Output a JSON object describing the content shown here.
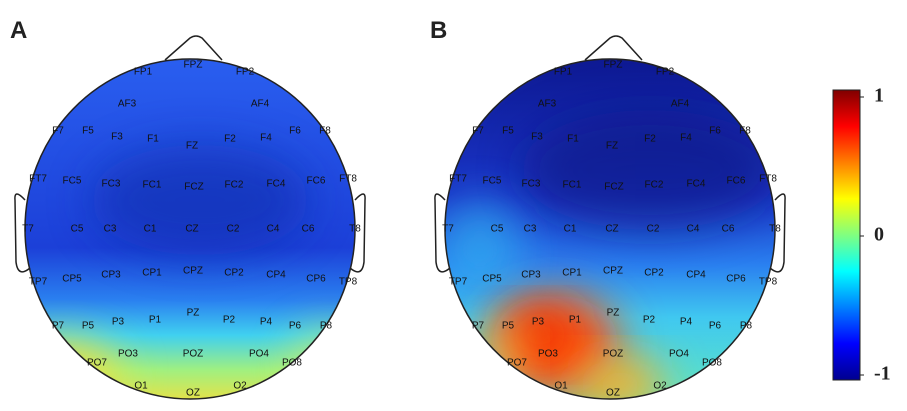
{
  "panels": [
    "A",
    "B"
  ],
  "electrodes": [
    "FP1",
    "FPZ",
    "FP2",
    "AF3",
    "AF4",
    "F7",
    "F5",
    "F3",
    "F1",
    "FZ",
    "F2",
    "F4",
    "F6",
    "F8",
    "FT7",
    "FC5",
    "FC3",
    "FC1",
    "FCZ",
    "FC2",
    "FC4",
    "FC6",
    "FT8",
    "T7",
    "C5",
    "C3",
    "C1",
    "CZ",
    "C2",
    "C4",
    "C6",
    "T8",
    "TP7",
    "CP5",
    "CP3",
    "CP1",
    "CPZ",
    "CP2",
    "CP4",
    "CP6",
    "TP8",
    "P7",
    "P5",
    "P3",
    "P1",
    "PZ",
    "P2",
    "P4",
    "P6",
    "P8",
    "PO7",
    "PO3",
    "POZ",
    "PO4",
    "PO8",
    "O1",
    "OZ",
    "O2"
  ],
  "colorbar": {
    "lim": [
      -1,
      1
    ],
    "ticks": [
      1,
      0,
      -1
    ]
  }
}
